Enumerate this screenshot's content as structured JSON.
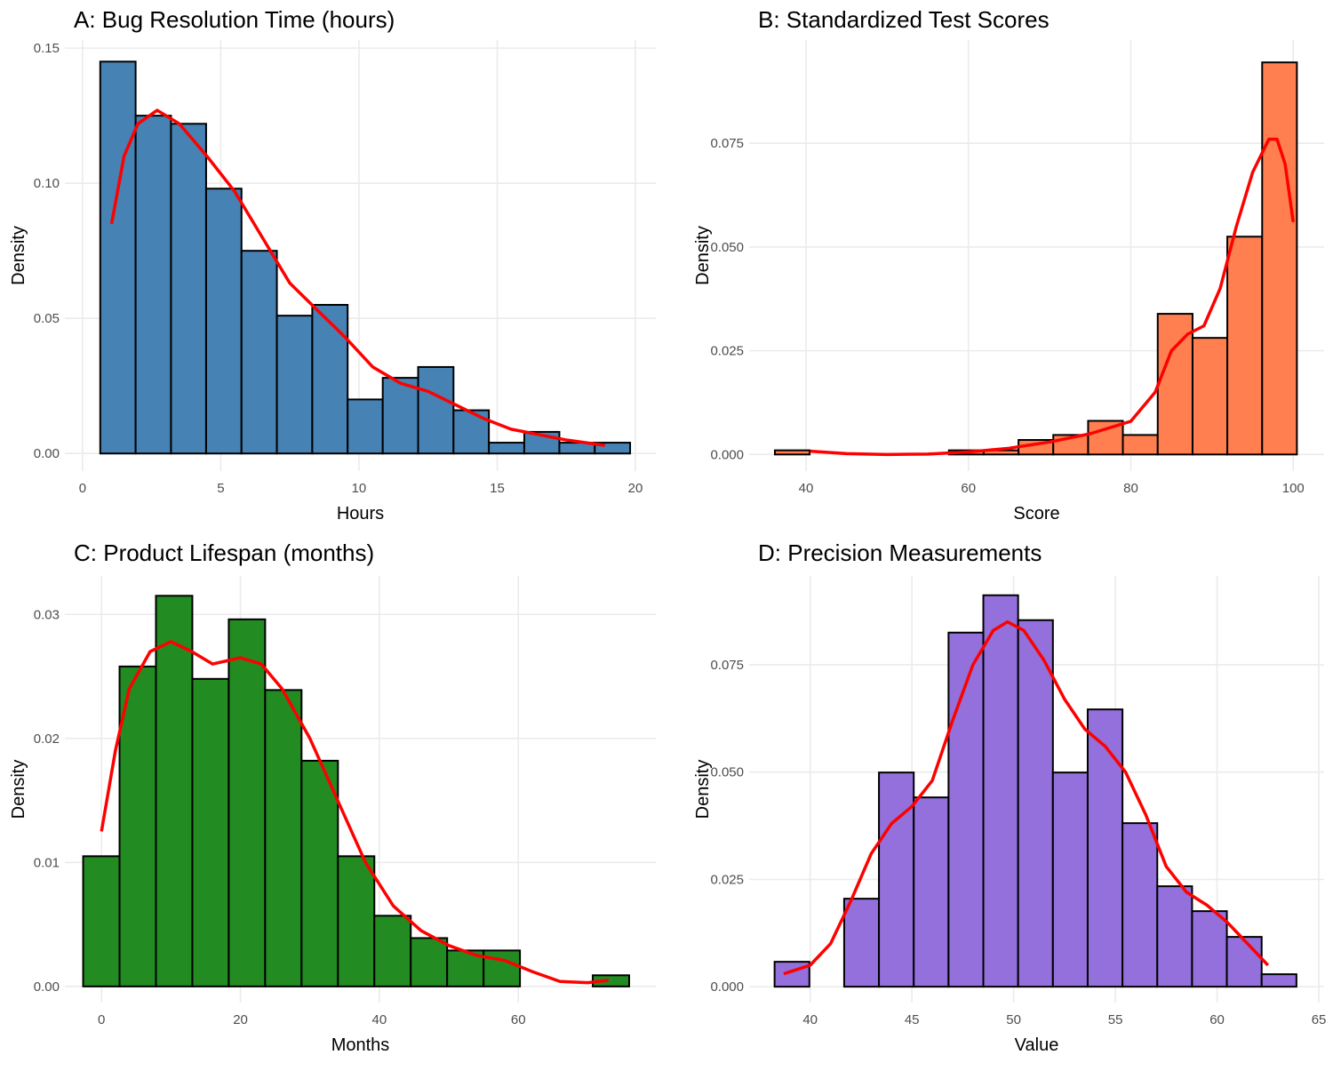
{
  "chart_data": [
    {
      "type": "histogram",
      "title": "A: Bug Resolution Time (hours)",
      "x_label": "Hours",
      "y_label": "Density",
      "color": "#4682b4",
      "grid": true,
      "bins": [
        0.64,
        1.92,
        3.2,
        4.47,
        5.75,
        7.03,
        8.31,
        9.59,
        10.86,
        12.14,
        13.42,
        14.7,
        15.98,
        17.25,
        18.53,
        19.81
      ],
      "values": [
        0.145,
        0.125,
        0.122,
        0.098,
        0.075,
        0.051,
        0.055,
        0.02,
        0.028,
        0.032,
        0.016,
        0.004,
        0.008,
        0.004,
        0.004
      ],
      "density": {
        "color": "#ff0000",
        "x": [
          1.05,
          1.5,
          2,
          2.7,
          3.5,
          4.5,
          5.5,
          6.5,
          7.5,
          8.5,
          9.5,
          10.5,
          11.5,
          12.5,
          13.5,
          14.5,
          15.5,
          16.5,
          17.5,
          18.9
        ],
        "values": [
          0.085,
          0.11,
          0.122,
          0.127,
          0.122,
          0.11,
          0.097,
          0.08,
          0.063,
          0.053,
          0.043,
          0.032,
          0.026,
          0.023,
          0.018,
          0.013,
          0.009,
          0.007,
          0.005,
          0.003
        ]
      },
      "xlim": [
        -0.64,
        20.74
      ],
      "ylim": [
        -0.0065,
        0.153
      ],
      "xticks": [
        0,
        5,
        10,
        15,
        20
      ],
      "yticks": [
        {
          "value": 0,
          "label": "0.00"
        },
        {
          "value": 0.05,
          "label": "0.05"
        },
        {
          "value": 0.1,
          "label": "0.10"
        },
        {
          "value": 0.15,
          "label": "0.15"
        }
      ]
    },
    {
      "type": "histogram",
      "title": "B: Standardized Test Scores",
      "x_label": "Score",
      "y_label": "Density",
      "color": "#ff7f50",
      "grid": true,
      "bins": [
        36.17,
        40.45,
        44.74,
        49.02,
        53.31,
        57.6,
        61.88,
        66.17,
        70.45,
        74.74,
        79.02,
        83.31,
        87.6,
        91.88,
        96.17,
        100.45
      ],
      "values": [
        0.001,
        0,
        0,
        0,
        0,
        0.001,
        0.001,
        0.0035,
        0.0047,
        0.0081,
        0.0047,
        0.0339,
        0.0281,
        0.0525,
        0.0945
      ],
      "density": {
        "color": "#ff0000",
        "x": [
          40.5,
          45,
          50,
          55,
          60,
          65,
          70,
          75,
          80,
          83,
          85,
          87,
          89,
          91,
          93,
          95,
          97,
          98,
          99,
          100
        ],
        "values": [
          0.0008,
          0.0002,
          0,
          0.0001,
          0.0006,
          0.0015,
          0.003,
          0.005,
          0.008,
          0.015,
          0.025,
          0.029,
          0.031,
          0.04,
          0.055,
          0.068,
          0.076,
          0.076,
          0.07,
          0.056
        ]
      },
      "xlim": [
        33,
        103.8
      ],
      "ylim": [
        -0.004,
        0.0999
      ],
      "xticks": [
        40,
        60,
        80,
        100
      ],
      "yticks": [
        {
          "value": 0,
          "label": "0.000"
        },
        {
          "value": 0.025,
          "label": "0.025"
        },
        {
          "value": 0.05,
          "label": "0.050"
        },
        {
          "value": 0.075,
          "label": "0.075"
        }
      ]
    },
    {
      "type": "histogram",
      "title": "C: Product Lifespan (months)",
      "x_label": "Months",
      "y_label": "Density",
      "color": "#228b22",
      "grid": true,
      "bins": [
        -2.64,
        2.6,
        7.84,
        13.08,
        18.32,
        23.56,
        28.8,
        34.04,
        39.28,
        44.52,
        49.76,
        55.0,
        60.24,
        65.48,
        70.72,
        75.96
      ],
      "values": [
        0.0105,
        0.0258,
        0.0315,
        0.0248,
        0.0296,
        0.0239,
        0.0182,
        0.0105,
        0.0057,
        0.0039,
        0.0029,
        0.0029,
        0,
        0,
        0.0009
      ],
      "density": {
        "color": "#ff0000",
        "x": [
          0,
          2,
          4,
          7,
          10,
          13,
          16,
          20,
          23,
          26,
          30,
          34,
          38,
          42,
          46,
          50,
          54,
          58,
          62,
          66,
          70,
          73
        ],
        "values": [
          0.0125,
          0.019,
          0.024,
          0.027,
          0.0278,
          0.027,
          0.026,
          0.0265,
          0.026,
          0.024,
          0.02,
          0.015,
          0.01,
          0.0065,
          0.0045,
          0.0033,
          0.0025,
          0.0021,
          0.0012,
          0.0004,
          0.0003,
          0.0005
        ]
      },
      "xlim": [
        -5.27,
        79.8
      ],
      "ylim": [
        -0.0013,
        0.0331
      ],
      "xticks": [
        0,
        20,
        40,
        60
      ],
      "yticks": [
        {
          "value": 0,
          "label": "0.00"
        },
        {
          "value": 0.01,
          "label": "0.01"
        },
        {
          "value": 0.02,
          "label": "0.02"
        },
        {
          "value": 0.03,
          "label": "0.03"
        }
      ]
    },
    {
      "type": "histogram",
      "title": "D: Precision Measurements",
      "x_label": "Value",
      "y_label": "Density",
      "color": "#9370db",
      "grid": true,
      "bins": [
        38.25,
        39.96,
        41.67,
        43.38,
        45.09,
        46.8,
        48.51,
        50.22,
        51.93,
        53.64,
        55.35,
        57.06,
        58.77,
        60.48,
        62.19,
        63.9
      ],
      "values": [
        0.0058,
        0,
        0.0205,
        0.0499,
        0.0441,
        0.0825,
        0.0912,
        0.0854,
        0.0499,
        0.0646,
        0.0381,
        0.0234,
        0.0176,
        0.0116,
        0.0029
      ],
      "density": {
        "color": "#ff0000",
        "x": [
          38.7,
          40,
          41,
          42,
          43,
          44,
          45,
          46,
          47,
          48,
          49,
          49.7,
          50.5,
          51.5,
          52.5,
          53.5,
          54.5,
          55.5,
          56.5,
          57.5,
          58.5,
          59.5,
          60.5,
          61.5,
          62.5
        ],
        "values": [
          0.003,
          0.005,
          0.01,
          0.02,
          0.031,
          0.038,
          0.042,
          0.048,
          0.062,
          0.075,
          0.083,
          0.085,
          0.083,
          0.076,
          0.067,
          0.06,
          0.056,
          0.05,
          0.04,
          0.028,
          0.022,
          0.019,
          0.015,
          0.01,
          0.005
        ]
      },
      "xlim": [
        37,
        65.26
      ],
      "ylim": [
        -0.0037,
        0.0957
      ],
      "xticks": [
        40,
        45,
        50,
        55,
        60,
        65
      ],
      "yticks": [
        {
          "value": 0,
          "label": "0.000"
        },
        {
          "value": 0.025,
          "label": "0.025"
        },
        {
          "value": 0.05,
          "label": "0.050"
        },
        {
          "value": 0.075,
          "label": "0.075"
        }
      ]
    }
  ]
}
